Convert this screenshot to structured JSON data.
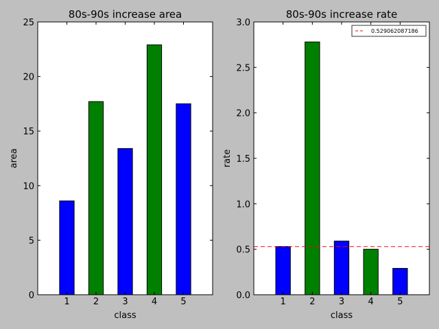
{
  "chart_data": [
    {
      "type": "bar",
      "title": "80s-90s increase area",
      "xlabel": "class",
      "ylabel": "area",
      "categories": [
        "1",
        "2",
        "3",
        "4",
        "5"
      ],
      "values": [
        8.6,
        17.7,
        13.4,
        22.9,
        17.5
      ],
      "bar_colors": [
        "#0000ff",
        "#008000",
        "#0000ff",
        "#008000",
        "#0000ff"
      ],
      "xlim": [
        0,
        6
      ],
      "ylim": [
        0,
        25
      ],
      "yticks": [
        "0",
        "5",
        "10",
        "15",
        "20",
        "25"
      ],
      "grid": false,
      "legend": null
    },
    {
      "type": "bar",
      "title": "80s-90s increase rate",
      "xlabel": "class",
      "ylabel": "rate",
      "categories": [
        "1",
        "2",
        "3",
        "4",
        "5"
      ],
      "values": [
        0.53,
        2.78,
        0.59,
        0.5,
        0.29
      ],
      "bar_colors": [
        "#0000ff",
        "#008000",
        "#0000ff",
        "#008000",
        "#0000ff"
      ],
      "xlim": [
        0,
        6
      ],
      "ylim": [
        0,
        3.0
      ],
      "yticks": [
        "0.0",
        "0.5",
        "1.0",
        "1.5",
        "2.0",
        "2.5",
        "3.0"
      ],
      "grid": false,
      "reference_line": {
        "value": 0.529062087186,
        "label": "0.529062087186",
        "color": "#ff0000",
        "style": "dashed"
      },
      "legend": {
        "position": "top-right",
        "entries": [
          "0.529062087186"
        ]
      }
    }
  ]
}
